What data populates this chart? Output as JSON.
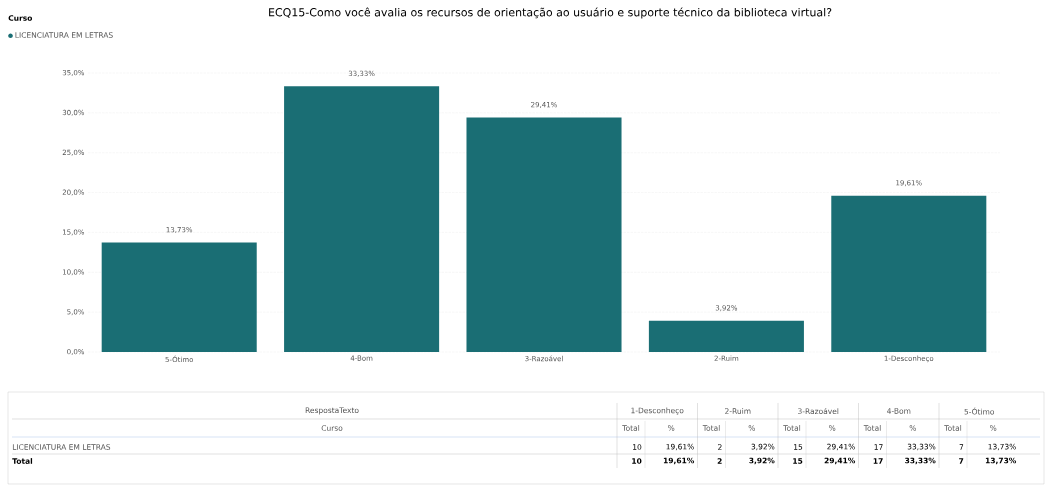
{
  "chart_data": {
    "type": "bar",
    "title": "ECQ15-Como você avalia os recursos de orientação ao usuário e suporte técnico da biblioteca virtual?",
    "categories": [
      "5-Ótimo",
      "4-Bom",
      "3-Razoável",
      "2-Ruim",
      "1-Desconheço"
    ],
    "series": [
      {
        "name": "LICENCIATURA EM LETRAS",
        "color": "#1a6e74",
        "values": [
          13.73,
          33.33,
          29.41,
          3.92,
          19.61
        ],
        "value_labels": [
          "13,73%",
          "33,33%",
          "29,41%",
          "3,92%",
          "19,61%"
        ]
      }
    ],
    "ylim": [
      0,
      35
    ],
    "yticks": [
      {
        "value": 0,
        "label": "0,0%"
      },
      {
        "value": 5,
        "label": "5,0%"
      },
      {
        "value": 10,
        "label": "10,0%"
      },
      {
        "value": 15,
        "label": "15,0%"
      },
      {
        "value": 20,
        "label": "20,0%"
      },
      {
        "value": 25,
        "label": "25,0%"
      },
      {
        "value": 30,
        "label": "30,0%"
      },
      {
        "value": 35,
        "label": "35,0%"
      }
    ],
    "grid": "y",
    "legend": "top left",
    "legend_title": "Curso",
    "annotations": [
      "RespostaTexto",
      "Curso",
      "Total",
      "%",
      "Total",
      "10",
      "19,61%",
      "2",
      "3,92%",
      "15",
      "29,41%",
      "17",
      "33,33%",
      "7",
      "13,73%"
    ]
  }
}
